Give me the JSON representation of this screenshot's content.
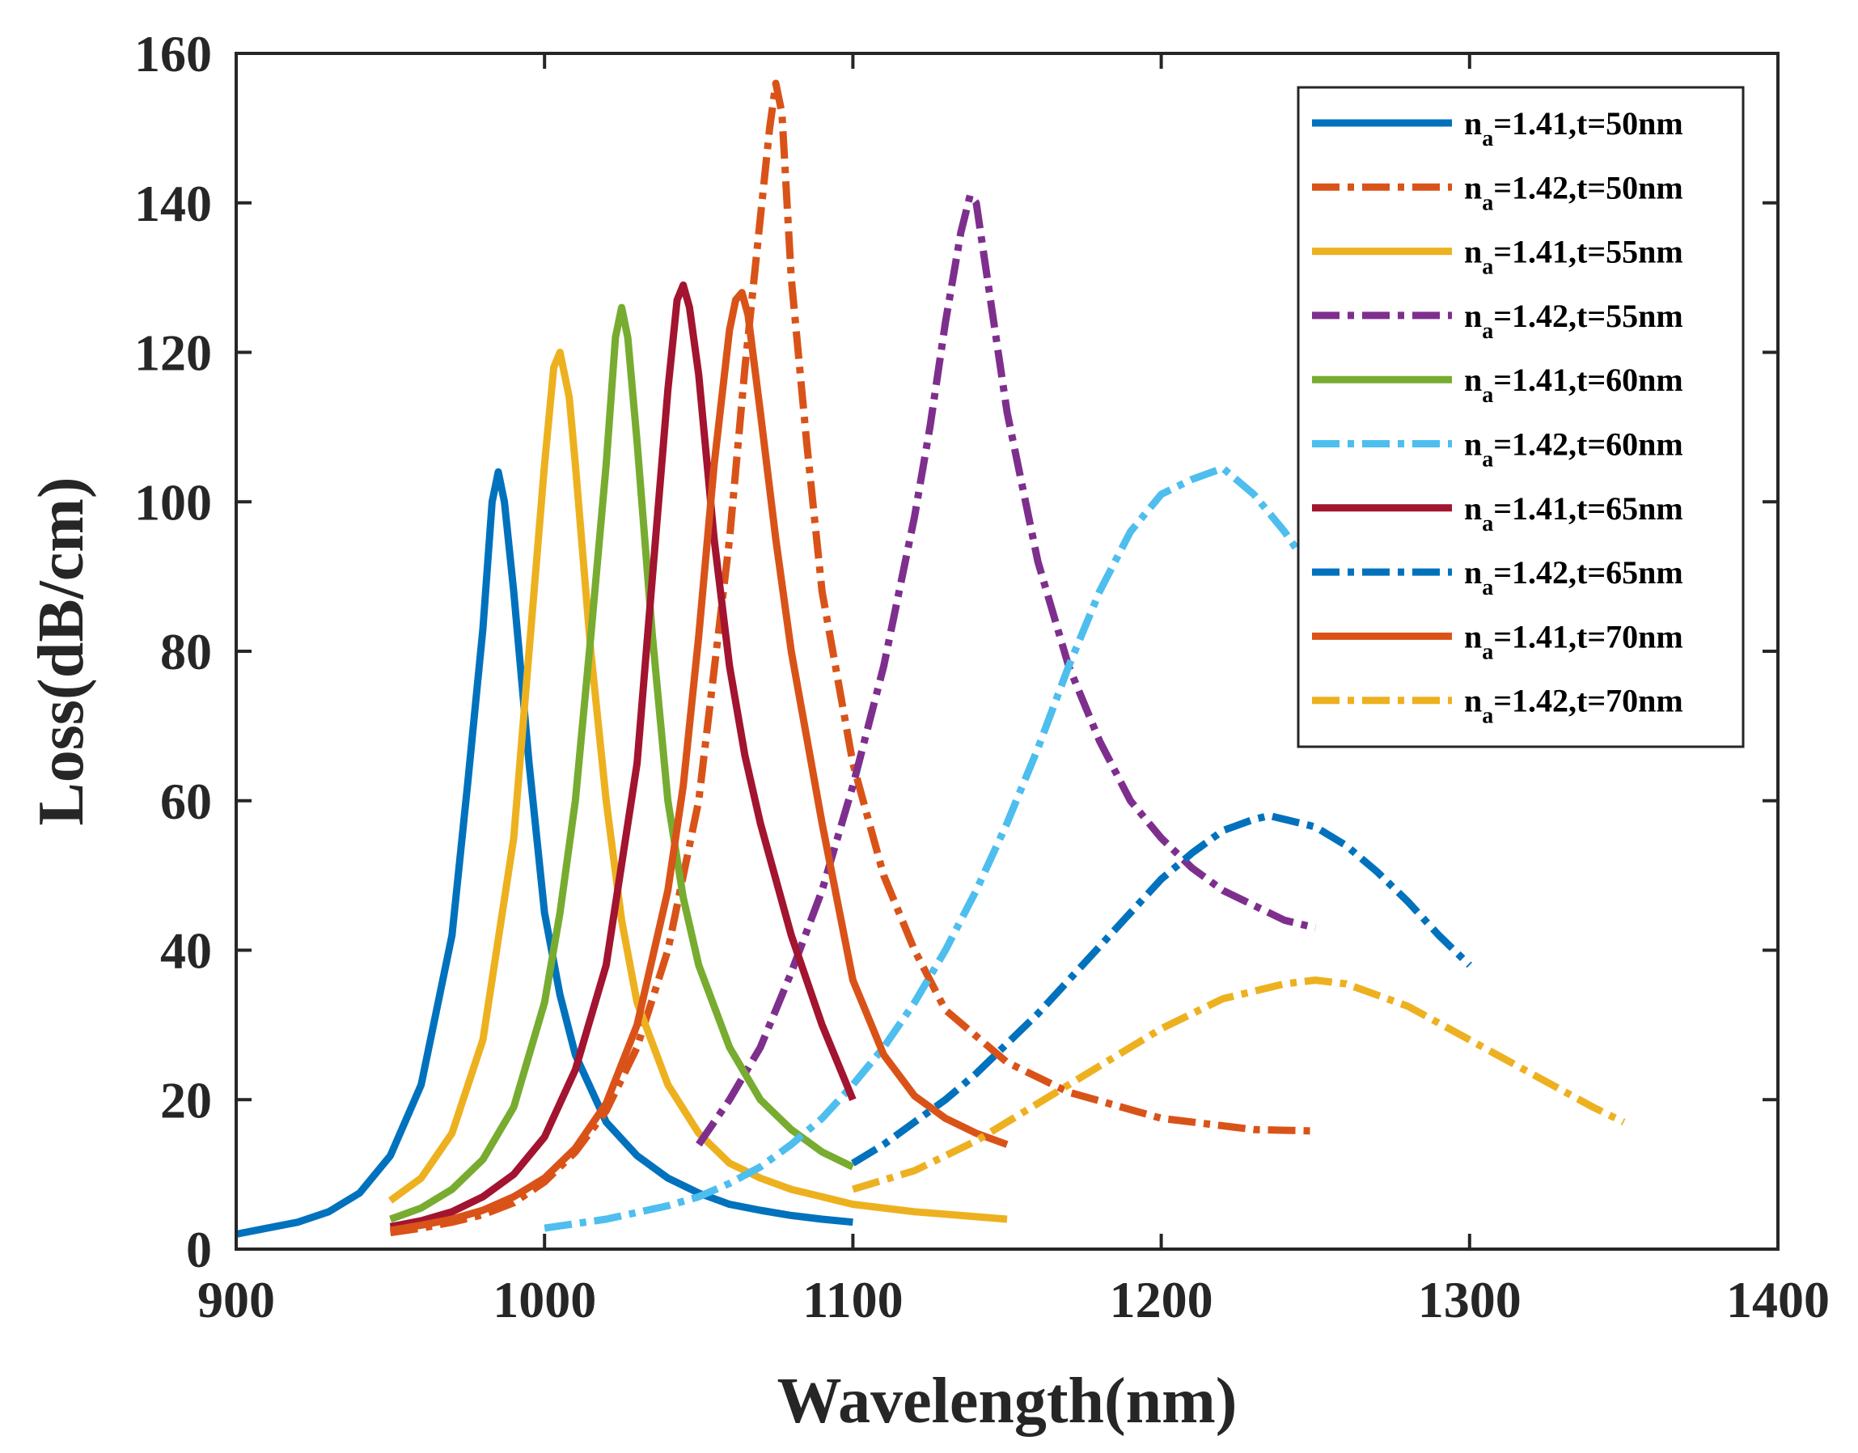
{
  "chart_data": {
    "type": "line",
    "title": "",
    "xlabel": "Wavelength(nm)",
    "ylabel": "Loss(dB/cm)",
    "xlim": [
      900,
      1400
    ],
    "ylim": [
      0,
      160
    ],
    "xticks": [
      "900",
      "1000",
      "1100",
      "1200",
      "1300",
      "1400"
    ],
    "yticks": [
      "0",
      "20",
      "40",
      "60",
      "80",
      "100",
      "120",
      "140",
      "160"
    ],
    "legend_position": "top-right",
    "series": [
      {
        "name": "n_a=1.41,t=50nm",
        "label_main": "n",
        "label_sub": "a",
        "label_rest": "=1.41,t=50nm",
        "color": "#0072BD",
        "dashed": false,
        "x": [
          900,
          910,
          920,
          930,
          940,
          950,
          960,
          970,
          975,
          980,
          983,
          985,
          987,
          990,
          995,
          1000,
          1005,
          1010,
          1020,
          1030,
          1040,
          1050,
          1060,
          1070,
          1080,
          1090,
          1100
        ],
        "y": [
          2,
          2.8,
          3.6,
          5,
          7.5,
          12.5,
          22,
          42,
          62,
          83,
          100,
          104,
          100,
          88,
          65,
          45,
          34,
          26,
          17,
          12.5,
          9.5,
          7.5,
          6,
          5.2,
          4.5,
          4,
          3.6
        ]
      },
      {
        "name": "n_a=1.42,t=50nm",
        "label_main": "n",
        "label_sub": "a",
        "label_rest": "=1.42,t=50nm",
        "color": "#D95319",
        "dashed": true,
        "x": [
          950,
          960,
          970,
          980,
          990,
          1000,
          1010,
          1020,
          1030,
          1040,
          1050,
          1060,
          1065,
          1070,
          1073,
          1075,
          1077,
          1080,
          1085,
          1090,
          1100,
          1110,
          1120,
          1130,
          1150,
          1170,
          1200,
          1230,
          1250
        ],
        "y": [
          2.2,
          2.8,
          3.6,
          4.6,
          6.2,
          9,
          13,
          18.5,
          27,
          40,
          60,
          95,
          118,
          138,
          150,
          156,
          152,
          130,
          108,
          88,
          65,
          50,
          40,
          32,
          25,
          21,
          17.5,
          16,
          15.8
        ]
      },
      {
        "name": "n_a=1.41,t=55nm",
        "label_main": "n",
        "label_sub": "a",
        "label_rest": "=1.41,t=55nm",
        "color": "#EDB120",
        "dashed": false,
        "x": [
          950,
          960,
          970,
          980,
          990,
          995,
          1000,
          1003,
          1005,
          1008,
          1010,
          1015,
          1020,
          1025,
          1030,
          1040,
          1050,
          1060,
          1070,
          1080,
          1090,
          1100,
          1120,
          1150
        ],
        "y": [
          6.5,
          9.5,
          15.5,
          28,
          55,
          80,
          105,
          118,
          120,
          114,
          105,
          80,
          60,
          44,
          33,
          22,
          15.5,
          11.5,
          9.5,
          8,
          7,
          6,
          5,
          4
        ]
      },
      {
        "name": "n_a=1.42,t=55nm",
        "label_main": "n",
        "label_sub": "a",
        "label_rest": "=1.42,t=55nm",
        "color": "#7E2F8E",
        "dashed": true,
        "x": [
          1050,
          1060,
          1070,
          1080,
          1090,
          1100,
          1110,
          1120,
          1125,
          1130,
          1135,
          1138,
          1140,
          1145,
          1150,
          1160,
          1170,
          1180,
          1190,
          1200,
          1210,
          1220,
          1230,
          1240,
          1250
        ],
        "y": [
          14,
          20,
          27,
          37,
          48,
          62,
          78,
          98,
          110,
          124,
          136,
          141,
          140,
          126,
          112,
          92,
          78,
          68,
          60,
          55,
          51,
          48,
          46,
          44,
          43
        ]
      },
      {
        "name": "n_a=1.41,t=60nm",
        "label_main": "n",
        "label_sub": "a",
        "label_rest": "=1.41,t=60nm",
        "color": "#77AC30",
        "dashed": false,
        "x": [
          950,
          960,
          970,
          980,
          990,
          1000,
          1005,
          1010,
          1015,
          1020,
          1023,
          1025,
          1027,
          1030,
          1035,
          1040,
          1045,
          1050,
          1060,
          1070,
          1080,
          1090,
          1100
        ],
        "y": [
          4,
          5.5,
          8,
          12,
          19,
          33,
          45,
          60,
          82,
          105,
          122,
          126,
          122,
          108,
          82,
          60,
          47,
          38,
          27,
          20,
          16,
          13,
          11
        ]
      },
      {
        "name": "n_a=1.42,t=60nm",
        "label_main": "n",
        "label_sub": "a",
        "label_rest": "=1.42,t=60nm",
        "color": "#4DBEEE",
        "dashed": true,
        "x": [
          1000,
          1020,
          1040,
          1050,
          1060,
          1070,
          1080,
          1090,
          1100,
          1110,
          1120,
          1130,
          1140,
          1150,
          1160,
          1170,
          1180,
          1190,
          1200,
          1210,
          1220,
          1230,
          1240,
          1245
        ],
        "y": [
          2.8,
          4,
          5.8,
          7,
          8.8,
          11,
          14,
          17.5,
          22,
          27,
          33,
          40,
          48,
          57,
          67,
          78,
          88,
          96,
          101,
          103,
          104.5,
          101,
          96,
          93
        ]
      },
      {
        "name": "n_a=1.41,t=65nm",
        "label_main": "n",
        "label_sub": "a",
        "label_rest": "=1.41,t=65nm",
        "color": "#A2142F",
        "dashed": false,
        "x": [
          950,
          960,
          970,
          980,
          990,
          1000,
          1010,
          1020,
          1030,
          1035,
          1040,
          1043,
          1045,
          1047,
          1050,
          1055,
          1060,
          1065,
          1070,
          1080,
          1090,
          1100
        ],
        "y": [
          3,
          3.8,
          5,
          7,
          10,
          15,
          24,
          38,
          65,
          90,
          115,
          127,
          129,
          126,
          117,
          95,
          78,
          66,
          57,
          42,
          30,
          20
        ]
      },
      {
        "name": "n_a=1.42,t=65nm",
        "label_main": "n",
        "label_sub": "a",
        "label_rest": "=1.42,t=65nm",
        "color": "#0072BD",
        "dashed": true,
        "x": [
          1100,
          1110,
          1120,
          1130,
          1140,
          1150,
          1160,
          1170,
          1180,
          1190,
          1200,
          1210,
          1220,
          1230,
          1235,
          1240,
          1250,
          1260,
          1270,
          1280,
          1290,
          1300
        ],
        "y": [
          11.5,
          14,
          17,
          20,
          23.5,
          27.5,
          31.5,
          36,
          40.5,
          45,
          49.5,
          53,
          56,
          57.5,
          58,
          57.5,
          56.5,
          54,
          50.5,
          46.5,
          42,
          38
        ]
      },
      {
        "name": "n_a=1.41,t=70nm",
        "label_main": "n",
        "label_sub": "a",
        "label_rest": "=1.41,t=70nm",
        "color": "#D95319",
        "dashed": false,
        "x": [
          950,
          960,
          970,
          980,
          990,
          1000,
          1010,
          1020,
          1030,
          1040,
          1045,
          1050,
          1055,
          1060,
          1062,
          1064,
          1066,
          1070,
          1075,
          1080,
          1090,
          1100,
          1110,
          1120,
          1130,
          1140,
          1150
        ],
        "y": [
          2.5,
          3.2,
          4,
          5.2,
          7,
          9.5,
          13.5,
          19.5,
          30,
          48,
          62,
          82,
          105,
          123,
          127,
          128,
          125,
          112,
          95,
          80,
          57,
          36,
          26,
          20.5,
          17.5,
          15.5,
          14
        ]
      },
      {
        "name": "n_a=1.42,t=70nm",
        "label_main": "n",
        "label_sub": "a",
        "label_rest": "=1.42,t=70nm",
        "color": "#EDB120",
        "dashed": true,
        "x": [
          1100,
          1120,
          1140,
          1160,
          1180,
          1200,
          1220,
          1240,
          1250,
          1260,
          1280,
          1300,
          1320,
          1340,
          1350
        ],
        "y": [
          8,
          10.5,
          14.5,
          19.5,
          24.5,
          29.5,
          33.5,
          35.5,
          36,
          35.5,
          32.5,
          28,
          23.5,
          19,
          17
        ]
      }
    ]
  }
}
